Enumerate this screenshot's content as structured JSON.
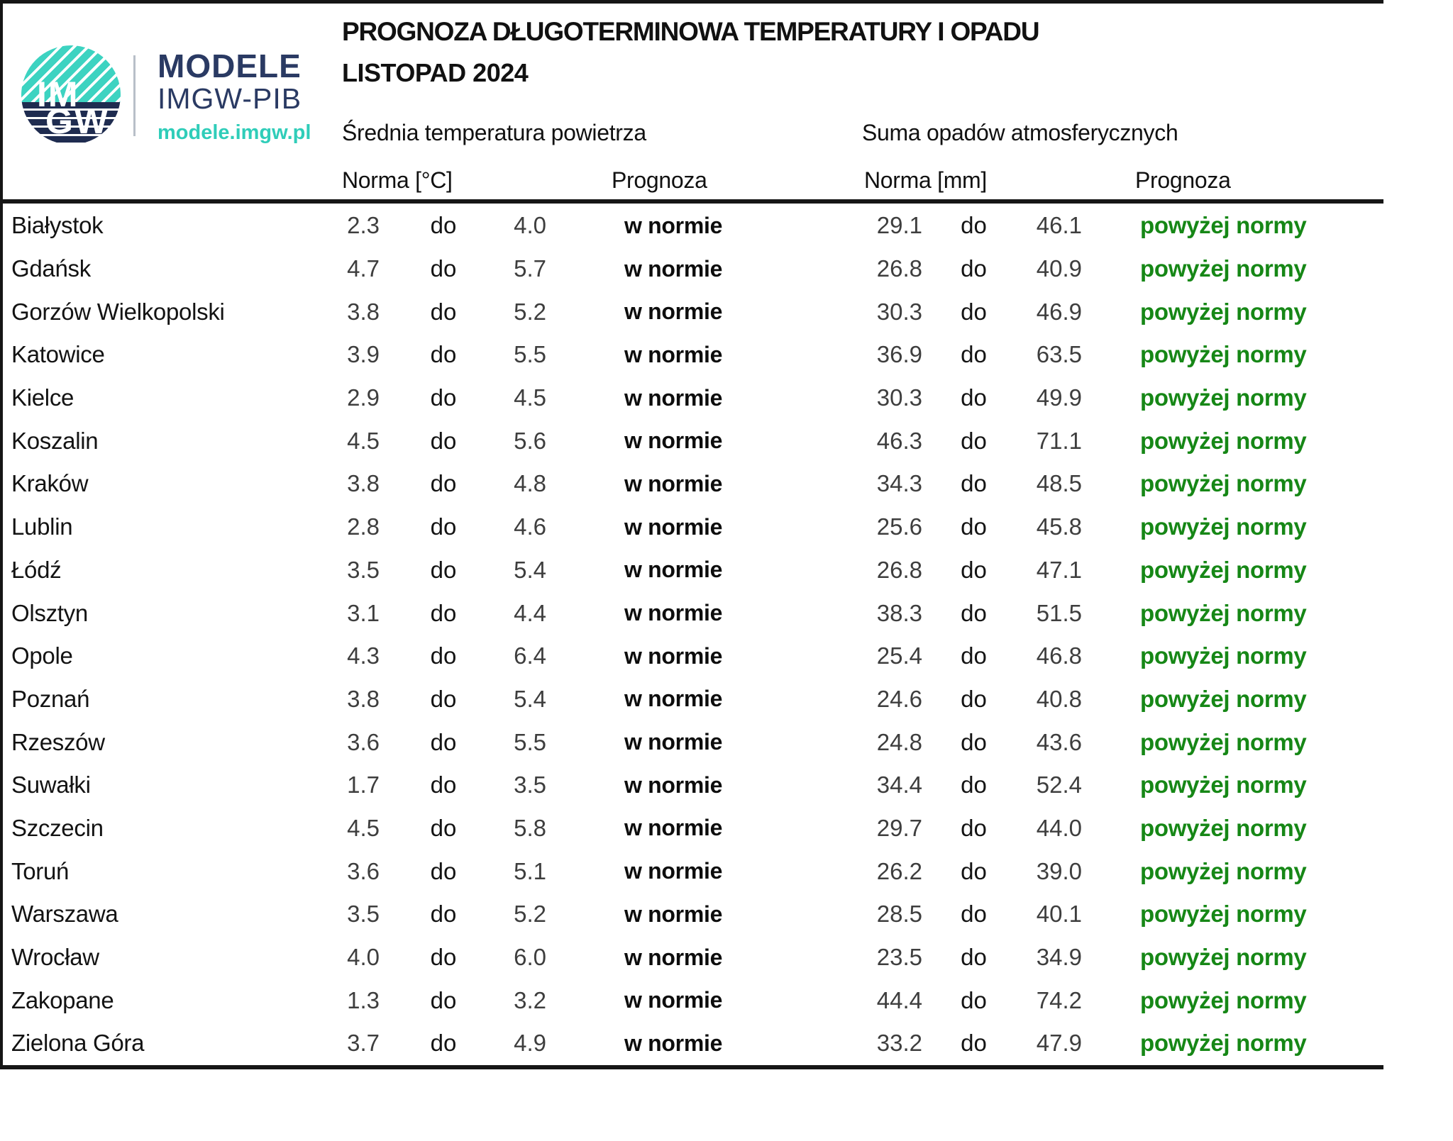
{
  "logo": {
    "im": "IM",
    "gw": "GW",
    "brand_line1": "MODELE",
    "brand_line2": "IMGW-PIB",
    "brand_url": "modele.imgw.pl"
  },
  "header": {
    "title": "PROGNOZA DŁUGOTERMINOWA TEMPERATURY I OPADU",
    "subtitle": "LISTOPAD 2024",
    "temp_section": "Średnia temperatura powietrza",
    "precip_section": "Suma opadów atmosferycznych",
    "temp_norm_label": "Norma [°C]",
    "temp_forecast_label": "Prognoza",
    "precip_norm_label": "Norma [mm]",
    "precip_forecast_label": "Prognoza"
  },
  "labels": {
    "range_separator": "do"
  },
  "colors": {
    "forecast_green": "#168716",
    "logo_teal": "#3DD3C1",
    "logo_teal_dark": "#2FCDB9",
    "logo_navy": "#1F2C50",
    "brand_navy": "#2A3A63"
  },
  "rows": [
    {
      "city": "Białystok",
      "tmin": "2.3",
      "tmax": "4.0",
      "tforecast": "w normie",
      "pmin": "29.1",
      "pmax": "46.1",
      "pforecast": "powyżej normy"
    },
    {
      "city": "Gdańsk",
      "tmin": "4.7",
      "tmax": "5.7",
      "tforecast": "w normie",
      "pmin": "26.8",
      "pmax": "40.9",
      "pforecast": "powyżej normy"
    },
    {
      "city": "Gorzów Wielkopolski",
      "tmin": "3.8",
      "tmax": "5.2",
      "tforecast": "w normie",
      "pmin": "30.3",
      "pmax": "46.9",
      "pforecast": "powyżej normy"
    },
    {
      "city": "Katowice",
      "tmin": "3.9",
      "tmax": "5.5",
      "tforecast": "w normie",
      "pmin": "36.9",
      "pmax": "63.5",
      "pforecast": "powyżej normy"
    },
    {
      "city": "Kielce",
      "tmin": "2.9",
      "tmax": "4.5",
      "tforecast": "w normie",
      "pmin": "30.3",
      "pmax": "49.9",
      "pforecast": "powyżej normy"
    },
    {
      "city": "Koszalin",
      "tmin": "4.5",
      "tmax": "5.6",
      "tforecast": "w normie",
      "pmin": "46.3",
      "pmax": "71.1",
      "pforecast": "powyżej normy"
    },
    {
      "city": "Kraków",
      "tmin": "3.8",
      "tmax": "4.8",
      "tforecast": "w normie",
      "pmin": "34.3",
      "pmax": "48.5",
      "pforecast": "powyżej normy"
    },
    {
      "city": "Lublin",
      "tmin": "2.8",
      "tmax": "4.6",
      "tforecast": "w normie",
      "pmin": "25.6",
      "pmax": "45.8",
      "pforecast": "powyżej normy"
    },
    {
      "city": "Łódź",
      "tmin": "3.5",
      "tmax": "5.4",
      "tforecast": "w normie",
      "pmin": "26.8",
      "pmax": "47.1",
      "pforecast": "powyżej normy"
    },
    {
      "city": "Olsztyn",
      "tmin": "3.1",
      "tmax": "4.4",
      "tforecast": "w normie",
      "pmin": "38.3",
      "pmax": "51.5",
      "pforecast": "powyżej normy"
    },
    {
      "city": "Opole",
      "tmin": "4.3",
      "tmax": "6.4",
      "tforecast": "w normie",
      "pmin": "25.4",
      "pmax": "46.8",
      "pforecast": "powyżej normy"
    },
    {
      "city": "Poznań",
      "tmin": "3.8",
      "tmax": "5.4",
      "tforecast": "w normie",
      "pmin": "24.6",
      "pmax": "40.8",
      "pforecast": "powyżej normy"
    },
    {
      "city": "Rzeszów",
      "tmin": "3.6",
      "tmax": "5.5",
      "tforecast": "w normie",
      "pmin": "24.8",
      "pmax": "43.6",
      "pforecast": "powyżej normy"
    },
    {
      "city": "Suwałki",
      "tmin": "1.7",
      "tmax": "3.5",
      "tforecast": "w normie",
      "pmin": "34.4",
      "pmax": "52.4",
      "pforecast": "powyżej normy"
    },
    {
      "city": "Szczecin",
      "tmin": "4.5",
      "tmax": "5.8",
      "tforecast": "w normie",
      "pmin": "29.7",
      "pmax": "44.0",
      "pforecast": "powyżej normy"
    },
    {
      "city": "Toruń",
      "tmin": "3.6",
      "tmax": "5.1",
      "tforecast": "w normie",
      "pmin": "26.2",
      "pmax": "39.0",
      "pforecast": "powyżej normy"
    },
    {
      "city": "Warszawa",
      "tmin": "3.5",
      "tmax": "5.2",
      "tforecast": "w normie",
      "pmin": "28.5",
      "pmax": "40.1",
      "pforecast": "powyżej normy"
    },
    {
      "city": "Wrocław",
      "tmin": "4.0",
      "tmax": "6.0",
      "tforecast": "w normie",
      "pmin": "23.5",
      "pmax": "34.9",
      "pforecast": "powyżej normy"
    },
    {
      "city": "Zakopane",
      "tmin": "1.3",
      "tmax": "3.2",
      "tforecast": "w normie",
      "pmin": "44.4",
      "pmax": "74.2",
      "pforecast": "powyżej normy"
    },
    {
      "city": "Zielona Góra",
      "tmin": "3.7",
      "tmax": "4.9",
      "tforecast": "w normie",
      "pmin": "33.2",
      "pmax": "47.9",
      "pforecast": "powyżej normy"
    }
  ]
}
